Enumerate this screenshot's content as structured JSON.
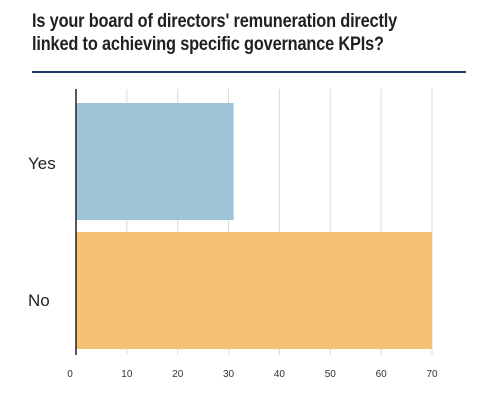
{
  "title": "Is your board of directors' remuneration directly linked to achieving specific governance KPIs?",
  "chart_data": {
    "type": "bar",
    "orientation": "horizontal",
    "categories": [
      "Yes",
      "No"
    ],
    "values": [
      31,
      70
    ],
    "colors": [
      "#9ec5d8",
      "#f6c174"
    ],
    "xlim": [
      0,
      70
    ],
    "xticks": [
      0,
      10,
      20,
      30,
      40,
      50,
      60,
      70
    ],
    "grid": true,
    "legend": "none"
  }
}
